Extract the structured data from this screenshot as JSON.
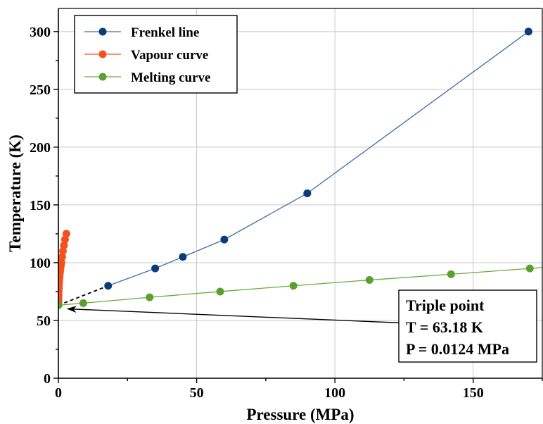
{
  "chart_data": {
    "type": "line",
    "xlabel": "Pressure (MPa)",
    "ylabel": "Temperature (K)",
    "xlim": [
      0,
      175
    ],
    "ylim": [
      0,
      320
    ],
    "xticks": [
      0,
      50,
      100,
      150
    ],
    "yticks": [
      0,
      50,
      100,
      150,
      200,
      250,
      300
    ],
    "grid": true,
    "legend_position": "top-left",
    "series": [
      {
        "name": "Frenkel line",
        "color": "#0b3c7a",
        "line_color": "#3a6ea5",
        "x": [
          18,
          35,
          45,
          60,
          90,
          170
        ],
        "y": [
          80,
          95,
          105,
          120,
          160,
          300
        ]
      },
      {
        "name": "Vapour curve",
        "color": "#f4511e",
        "line_color": "#f4511e",
        "x": [
          0.0124,
          0.02,
          0.03,
          0.05,
          0.07,
          0.1,
          0.14,
          0.19,
          0.25,
          0.32,
          0.4,
          0.5,
          0.62,
          0.75,
          0.9,
          1.1,
          1.35,
          1.65,
          2.0,
          2.4,
          2.9
        ],
        "y": [
          63.18,
          65,
          67,
          70,
          72,
          75,
          77.5,
          80,
          82.5,
          85,
          87.5,
          90,
          92.5,
          95,
          97.5,
          100,
          105,
          110,
          115,
          120,
          125
        ]
      },
      {
        "name": "Melting curve",
        "color": "#5aa02c",
        "line_color": "#6aaa3a",
        "x": [
          0.0124,
          9,
          33,
          58.5,
          85,
          112.5,
          142,
          170.5,
          180
        ],
        "y": [
          63.18,
          65,
          70,
          75,
          80,
          85,
          90,
          95,
          96.5
        ]
      }
    ],
    "dashed_connector": {
      "x": [
        0.0124,
        18
      ],
      "y": [
        63.18,
        80
      ]
    },
    "annotation": {
      "lines": [
        "Triple point",
        "T = 63.18 K",
        "P = 0.0124 MPa"
      ],
      "arrow_to": {
        "x": 3.5,
        "y": 60
      },
      "arrow_from": {
        "x": 123,
        "y": 48
      }
    }
  }
}
